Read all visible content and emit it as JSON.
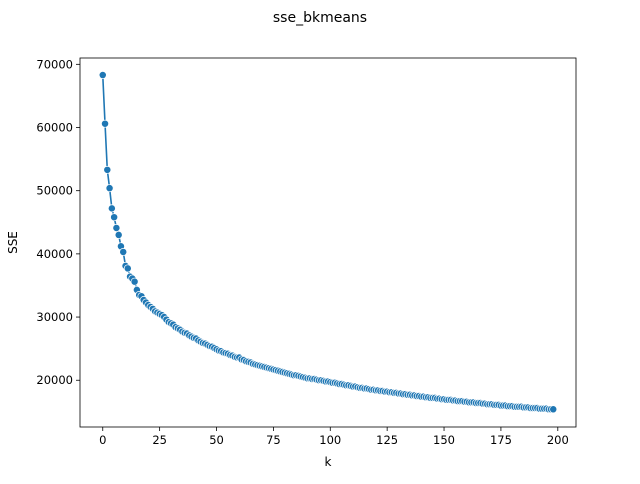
{
  "chart_data": {
    "type": "line",
    "title": "sse_bkmeans",
    "xlabel": "k",
    "ylabel": "SSE",
    "xlim": [
      -10,
      208
    ],
    "ylim": [
      12600,
      71000
    ],
    "xticks": [
      0,
      25,
      50,
      75,
      100,
      125,
      150,
      175,
      200
    ],
    "xtick_labels": [
      "0",
      "25",
      "50",
      "75",
      "100",
      "125",
      "150",
      "175",
      "200"
    ],
    "yticks": [
      20000,
      30000,
      40000,
      50000,
      60000,
      70000
    ],
    "ytick_labels": [
      "20000",
      "30000",
      "40000",
      "50000",
      "60000",
      "70000"
    ],
    "grid": false,
    "colors": {
      "series": "#1f77b4",
      "marker_edge": "#ffffff"
    },
    "series": [
      {
        "marker": "circle",
        "x": [
          0,
          1,
          2,
          3,
          4,
          5,
          6,
          7,
          8,
          9,
          10,
          11,
          12,
          13,
          14,
          15,
          16,
          17,
          18,
          19,
          20,
          21,
          22,
          23,
          24,
          25,
          26,
          27,
          28,
          29,
          30,
          31,
          32,
          33,
          34,
          35,
          36,
          37,
          38,
          39,
          40,
          41,
          42,
          43,
          44,
          45,
          46,
          47,
          48,
          49,
          50,
          51,
          52,
          53,
          54,
          55,
          56,
          57,
          58,
          59,
          60,
          61,
          62,
          63,
          64,
          65,
          66,
          67,
          68,
          69,
          70,
          71,
          72,
          73,
          74,
          75,
          76,
          77,
          78,
          79,
          80,
          81,
          82,
          83,
          84,
          85,
          86,
          87,
          88,
          89,
          90,
          91,
          92,
          93,
          94,
          95,
          96,
          97,
          98,
          99,
          100,
          101,
          102,
          103,
          104,
          105,
          106,
          107,
          108,
          109,
          110,
          111,
          112,
          113,
          114,
          115,
          116,
          117,
          118,
          119,
          120,
          121,
          122,
          123,
          124,
          125,
          126,
          127,
          128,
          129,
          130,
          131,
          132,
          133,
          134,
          135,
          136,
          137,
          138,
          139,
          140,
          141,
          142,
          143,
          144,
          145,
          146,
          147,
          148,
          149,
          150,
          151,
          152,
          153,
          154,
          155,
          156,
          157,
          158,
          159,
          160,
          161,
          162,
          163,
          164,
          165,
          166,
          167,
          168,
          169,
          170,
          171,
          172,
          173,
          174,
          175,
          176,
          177,
          178,
          179,
          180,
          181,
          182,
          183,
          184,
          185,
          186,
          187,
          188,
          189,
          190,
          191,
          192,
          193,
          194,
          195,
          196,
          197,
          198
        ],
        "y": [
          68300,
          60600,
          53300,
          50400,
          47200,
          45800,
          44100,
          43000,
          41200,
          40300,
          38100,
          37700,
          36400,
          36100,
          35600,
          34300,
          33500,
          33300,
          32700,
          32300,
          31900,
          31600,
          31300,
          30900,
          30700,
          30500,
          30300,
          30000,
          29600,
          29200,
          29000,
          28800,
          28400,
          28200,
          28000,
          27700,
          27500,
          27400,
          27100,
          26900,
          26700,
          26600,
          26300,
          26100,
          25900,
          25800,
          25600,
          25400,
          25300,
          25100,
          24900,
          24700,
          24600,
          24400,
          24300,
          24200,
          24000,
          23900,
          23700,
          23600,
          23600,
          23300,
          23200,
          23000,
          22900,
          22800,
          22600,
          22500,
          22400,
          22300,
          22200,
          22100,
          22000,
          21900,
          21800,
          21700,
          21600,
          21500,
          21400,
          21300,
          21200,
          21100,
          21000,
          20900,
          20800,
          20800,
          20700,
          20600,
          20500,
          20400,
          20300,
          20300,
          20200,
          20200,
          20100,
          20000,
          20000,
          19900,
          19800,
          19800,
          19700,
          19600,
          19600,
          19500,
          19400,
          19400,
          19300,
          19200,
          19200,
          19100,
          19000,
          19000,
          18900,
          18800,
          18800,
          18700,
          18700,
          18600,
          18500,
          18500,
          18400,
          18400,
          18300,
          18300,
          18200,
          18200,
          18100,
          18100,
          18000,
          18000,
          17900,
          17900,
          17800,
          17800,
          17700,
          17700,
          17600,
          17600,
          17500,
          17500,
          17400,
          17400,
          17300,
          17300,
          17200,
          17200,
          17200,
          17100,
          17100,
          17000,
          17000,
          16900,
          16900,
          16900,
          16800,
          16800,
          16700,
          16700,
          16700,
          16600,
          16600,
          16500,
          16500,
          16500,
          16400,
          16400,
          16400,
          16300,
          16300,
          16200,
          16200,
          16200,
          16100,
          16100,
          16100,
          16000,
          16000,
          16000,
          15900,
          15900,
          15900,
          15800,
          15800,
          15800,
          15800,
          15700,
          15700,
          15700,
          15600,
          15600,
          15600,
          15600,
          15500,
          15500,
          15500,
          15500,
          15400,
          15400,
          15400
        ]
      }
    ]
  }
}
